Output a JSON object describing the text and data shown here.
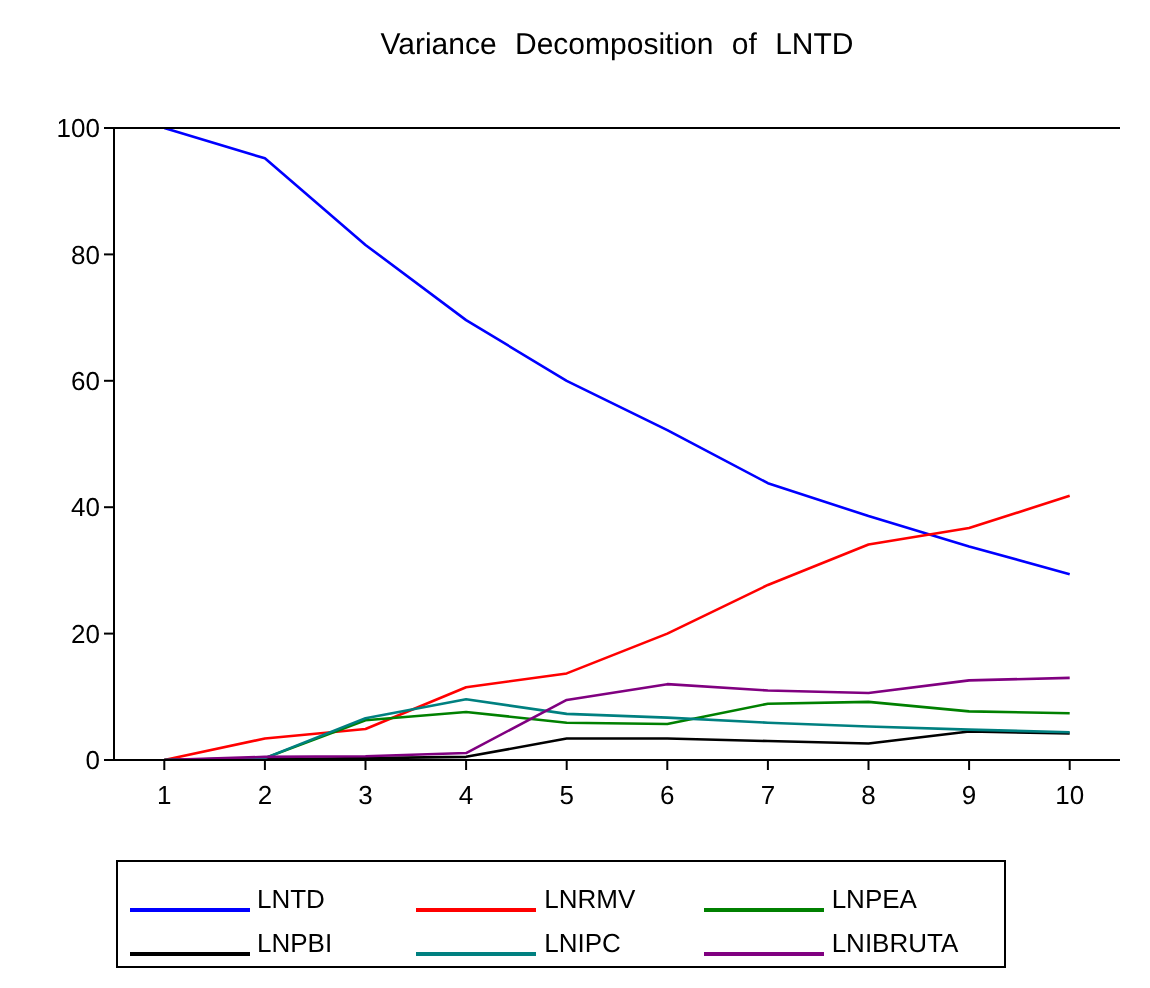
{
  "chart_data": {
    "type": "line",
    "title": "Variance Decomposition of LNTD",
    "x": [
      1,
      2,
      3,
      4,
      5,
      6,
      7,
      8,
      9,
      10
    ],
    "xlim": [
      0.5,
      10.5
    ],
    "xticks": [
      1,
      2,
      3,
      4,
      5,
      6,
      7,
      8,
      9,
      10
    ],
    "ylim": [
      0,
      100
    ],
    "yticks": [
      0,
      20,
      40,
      60,
      80,
      100
    ],
    "grid": false,
    "legend": "bottom",
    "marker": "none",
    "line_style": "solid",
    "series": [
      {
        "name": "LNTD",
        "color": "#0000ff",
        "values": [
          100,
          95.2,
          81.5,
          69.6,
          60,
          52.2,
          43.8,
          38.6,
          33.8,
          29.4
        ]
      },
      {
        "name": "LNRMV",
        "color": "#ff0000",
        "values": [
          0,
          3.4,
          4.9,
          11.5,
          13.7,
          20,
          27.7,
          34.1,
          36.7,
          41.8
        ]
      },
      {
        "name": "LNPEA",
        "color": "#008000",
        "values": [
          0,
          0.3,
          6.3,
          7.6,
          5.9,
          5.7,
          8.9,
          9.2,
          7.7,
          7.4
        ]
      },
      {
        "name": "LNPBI",
        "color": "#000000",
        "values": [
          0,
          0.1,
          0.3,
          0.5,
          3.4,
          3.4,
          3.0,
          2.6,
          4.5,
          4.2
        ]
      },
      {
        "name": "LNIPC",
        "color": "#008080",
        "values": [
          0,
          0.3,
          6.6,
          9.6,
          7.3,
          6.7,
          5.9,
          5.3,
          4.8,
          4.4
        ]
      },
      {
        "name": "LNIBRUTA",
        "color": "#800080",
        "values": [
          0,
          0.5,
          0.6,
          1.1,
          9.5,
          12.0,
          11.0,
          10.6,
          12.6,
          13.0
        ]
      }
    ]
  }
}
